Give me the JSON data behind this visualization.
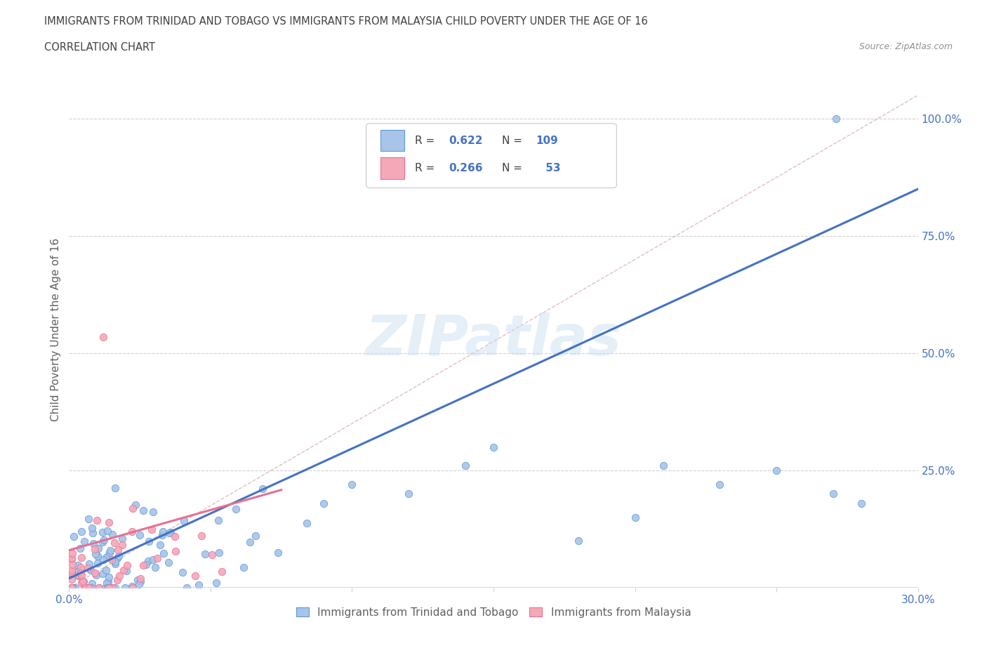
{
  "title_line1": "IMMIGRANTS FROM TRINIDAD AND TOBAGO VS IMMIGRANTS FROM MALAYSIA CHILD POVERTY UNDER THE AGE OF 16",
  "title_line2": "CORRELATION CHART",
  "source_text": "Source: ZipAtlas.com",
  "ylabel": "Child Poverty Under the Age of 16",
  "xlim": [
    0.0,
    0.3
  ],
  "ylim": [
    0.0,
    1.1
  ],
  "blue_R": 0.622,
  "blue_N": 109,
  "pink_R": 0.266,
  "pink_N": 53,
  "legend_label_blue": "Immigrants from Trinidad and Tobago",
  "legend_label_pink": "Immigrants from Malaysia",
  "watermark": "ZIPatlas",
  "blue_fill": "#a8c4e8",
  "pink_fill": "#f4a8b8",
  "blue_edge": "#5b9bd5",
  "pink_edge": "#e87090",
  "blue_line": "#4472c4",
  "pink_line": "#e87090",
  "dash_line": "#d4a0a8",
  "title_color": "#404040",
  "axis_label_color": "#606060",
  "tick_color": "#4472c4",
  "grid_color": "#d0d0d0",
  "background_color": "#ffffff",
  "legend_text_color": "#404040",
  "source_color": "#909090"
}
